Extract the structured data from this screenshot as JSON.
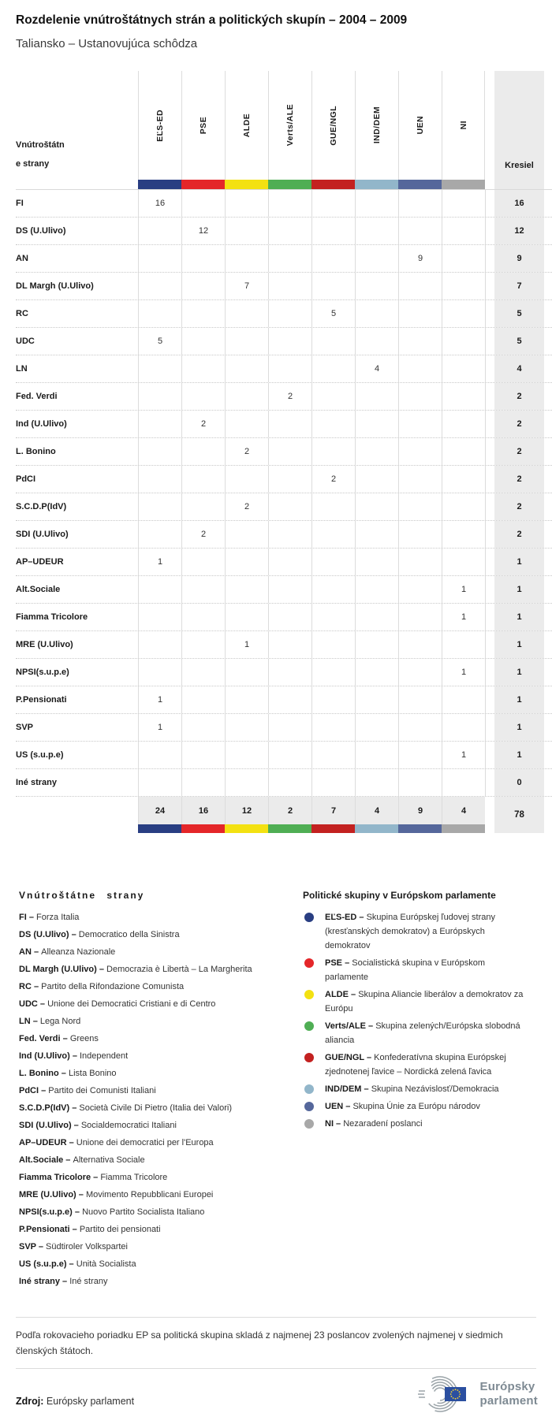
{
  "header": {
    "title": "Rozdelenie vnútroštátnych strán a politických skupín – 2004 – 2009",
    "subtitle": "Taliansko – Ustanovujúca schôdza"
  },
  "chart_data": {
    "type": "table",
    "row_header_label": "Vnútroštátne strany",
    "seats_label": "Kresiel",
    "groups": [
      {
        "label": "EĽS-ED",
        "color": "#293e82"
      },
      {
        "label": "PSE",
        "color": "#e42629"
      },
      {
        "label": "ALDE",
        "color": "#f3e112"
      },
      {
        "label": "Verts/ALE",
        "color": "#4fae54"
      },
      {
        "label": "GUE/NGL",
        "color": "#c32120"
      },
      {
        "label": "IND/DEM",
        "color": "#92b6ca"
      },
      {
        "label": "UEN",
        "color": "#55679b"
      },
      {
        "label": "NI",
        "color": "#a8a8a8"
      }
    ],
    "rows": [
      {
        "party": "FI",
        "values": [
          "16",
          "",
          "",
          "",
          "",
          "",
          "",
          ""
        ],
        "total": "16"
      },
      {
        "party": "DS (U.Ulivo)",
        "values": [
          "",
          "12",
          "",
          "",
          "",
          "",
          "",
          ""
        ],
        "total": "12"
      },
      {
        "party": "AN",
        "values": [
          "",
          "",
          "",
          "",
          "",
          "",
          "9",
          ""
        ],
        "total": "9"
      },
      {
        "party": "DL Margh (U.Ulivo)",
        "values": [
          "",
          "",
          "7",
          "",
          "",
          "",
          "",
          ""
        ],
        "total": "7"
      },
      {
        "party": "RC",
        "values": [
          "",
          "",
          "",
          "",
          "5",
          "",
          "",
          ""
        ],
        "total": "5"
      },
      {
        "party": "UDC",
        "values": [
          "5",
          "",
          "",
          "",
          "",
          "",
          "",
          ""
        ],
        "total": "5"
      },
      {
        "party": "LN",
        "values": [
          "",
          "",
          "",
          "",
          "",
          "4",
          "",
          ""
        ],
        "total": "4"
      },
      {
        "party": "Fed. Verdi",
        "values": [
          "",
          "",
          "",
          "2",
          "",
          "",
          "",
          ""
        ],
        "total": "2"
      },
      {
        "party": "Ind (U.Ulivo)",
        "values": [
          "",
          "2",
          "",
          "",
          "",
          "",
          "",
          ""
        ],
        "total": "2"
      },
      {
        "party": "L. Bonino",
        "values": [
          "",
          "",
          "2",
          "",
          "",
          "",
          "",
          ""
        ],
        "total": "2"
      },
      {
        "party": "PdCI",
        "values": [
          "",
          "",
          "",
          "",
          "2",
          "",
          "",
          ""
        ],
        "total": "2"
      },
      {
        "party": "S.C.D.P(IdV)",
        "values": [
          "",
          "",
          "2",
          "",
          "",
          "",
          "",
          ""
        ],
        "total": "2"
      },
      {
        "party": "SDI (U.Ulivo)",
        "values": [
          "",
          "2",
          "",
          "",
          "",
          "",
          "",
          ""
        ],
        "total": "2"
      },
      {
        "party": "AP–UDEUR",
        "values": [
          "1",
          "",
          "",
          "",
          "",
          "",
          "",
          ""
        ],
        "total": "1"
      },
      {
        "party": "Alt.Sociale",
        "values": [
          "",
          "",
          "",
          "",
          "",
          "",
          "",
          "1"
        ],
        "total": "1"
      },
      {
        "party": "Fiamma Tricolore",
        "values": [
          "",
          "",
          "",
          "",
          "",
          "",
          "",
          "1"
        ],
        "total": "1"
      },
      {
        "party": "MRE (U.Ulivo)",
        "values": [
          "",
          "",
          "1",
          "",
          "",
          "",
          "",
          ""
        ],
        "total": "1"
      },
      {
        "party": "NPSI(s.u.p.e)",
        "values": [
          "",
          "",
          "",
          "",
          "",
          "",
          "",
          "1"
        ],
        "total": "1"
      },
      {
        "party": "P.Pensionati",
        "values": [
          "1",
          "",
          "",
          "",
          "",
          "",
          "",
          ""
        ],
        "total": "1"
      },
      {
        "party": "SVP",
        "values": [
          "1",
          "",
          "",
          "",
          "",
          "",
          "",
          ""
        ],
        "total": "1"
      },
      {
        "party": "US (s.u.p.e)",
        "values": [
          "",
          "",
          "",
          "",
          "",
          "",
          "",
          "1"
        ],
        "total": "1"
      },
      {
        "party": "Iné strany",
        "values": [
          "",
          "",
          "",
          "",
          "",
          "",
          "",
          ""
        ],
        "total": "0"
      }
    ],
    "totals": [
      "24",
      "16",
      "12",
      "2",
      "7",
      "4",
      "9",
      "4"
    ],
    "grand_total": "78"
  },
  "legend_parties": {
    "heading": "Vnútroštátne strany",
    "items": [
      {
        "abbr": "FI",
        "name": "Forza Italia"
      },
      {
        "abbr": "DS (U.Ulivo)",
        "name": "Democratico della Sinistra"
      },
      {
        "abbr": "AN",
        "name": "Alleanza Nazionale"
      },
      {
        "abbr": "DL Margh (U.Ulivo)",
        "name": "Democrazia è Libertà – La Margherita"
      },
      {
        "abbr": "RC",
        "name": "Partito della Rifondazione Comunista"
      },
      {
        "abbr": "UDC",
        "name": "Unione dei Democratici Cristiani e di Centro"
      },
      {
        "abbr": "LN",
        "name": "Lega Nord"
      },
      {
        "abbr": "Fed. Verdi",
        "name": "Greens"
      },
      {
        "abbr": "Ind (U.Ulivo)",
        "name": "Independent"
      },
      {
        "abbr": "L. Bonino",
        "name": "Lista Bonino"
      },
      {
        "abbr": "PdCI",
        "name": "Partito dei Comunisti Italiani"
      },
      {
        "abbr": "S.C.D.P(IdV)",
        "name": "Società Civile Di Pietro (Italia dei Valori)"
      },
      {
        "abbr": "SDI (U.Ulivo)",
        "name": "Socialdemocratici Italiani"
      },
      {
        "abbr": "AP–UDEUR",
        "name": "Unione dei democratici per l'Europa"
      },
      {
        "abbr": "Alt.Sociale",
        "name": "Alternativa Sociale"
      },
      {
        "abbr": "Fiamma Tricolore",
        "name": "Fiamma Tricolore"
      },
      {
        "abbr": "MRE (U.Ulivo)",
        "name": "Movimento Repubblicani Europei"
      },
      {
        "abbr": "NPSI(s.u.p.e)",
        "name": "Nuovo Partito Socialista Italiano"
      },
      {
        "abbr": "P.Pensionati",
        "name": "Partito dei pensionati"
      },
      {
        "abbr": "SVP",
        "name": "Südtiroler Volkspartei"
      },
      {
        "abbr": "US (s.u.p.e)",
        "name": "Unità Socialista"
      },
      {
        "abbr": "Iné strany",
        "name": "Iné strany"
      }
    ]
  },
  "legend_groups": {
    "heading": "Politické skupiny v Európskom parlamente",
    "items": [
      {
        "abbr": "EĽS-ED",
        "color": "#293e82",
        "desc": "Skupina Európskej ľudovej strany (kresťanských demokratov) a Európskych demokratov"
      },
      {
        "abbr": "PSE",
        "color": "#e42629",
        "desc": "Socialistická skupina v Európskom parlamente"
      },
      {
        "abbr": "ALDE",
        "color": "#f3e112",
        "desc": "Skupina Aliancie liberálov a demokratov za Európu"
      },
      {
        "abbr": "Verts/ALE",
        "color": "#4fae54",
        "desc": "Skupina zelených/Európska slobodná aliancia"
      },
      {
        "abbr": "GUE/NGL",
        "color": "#c32120",
        "desc": "Konfederatívna skupina Európskej zjednotenej ľavice – Nordická zelená ľavica"
      },
      {
        "abbr": "IND/DEM",
        "color": "#92b6ca",
        "desc": "Skupina Nezávislosť/Demokracia"
      },
      {
        "abbr": "UEN",
        "color": "#55679b",
        "desc": "Skupina Únie za Európu národov"
      },
      {
        "abbr": "NI",
        "color": "#a8a8a8",
        "desc": "Nezaradení poslanci"
      }
    ]
  },
  "footer": {
    "note": "Podľa rokovacieho poriadku EP sa politická skupina skladá z najmenej 23 poslancov zvolených najmenej v siedmich členských štátoch.",
    "source_label": "Zdroj:",
    "source_value": "Európsky parlament",
    "logo_line1": "Európsky",
    "logo_line2": "parlament"
  }
}
